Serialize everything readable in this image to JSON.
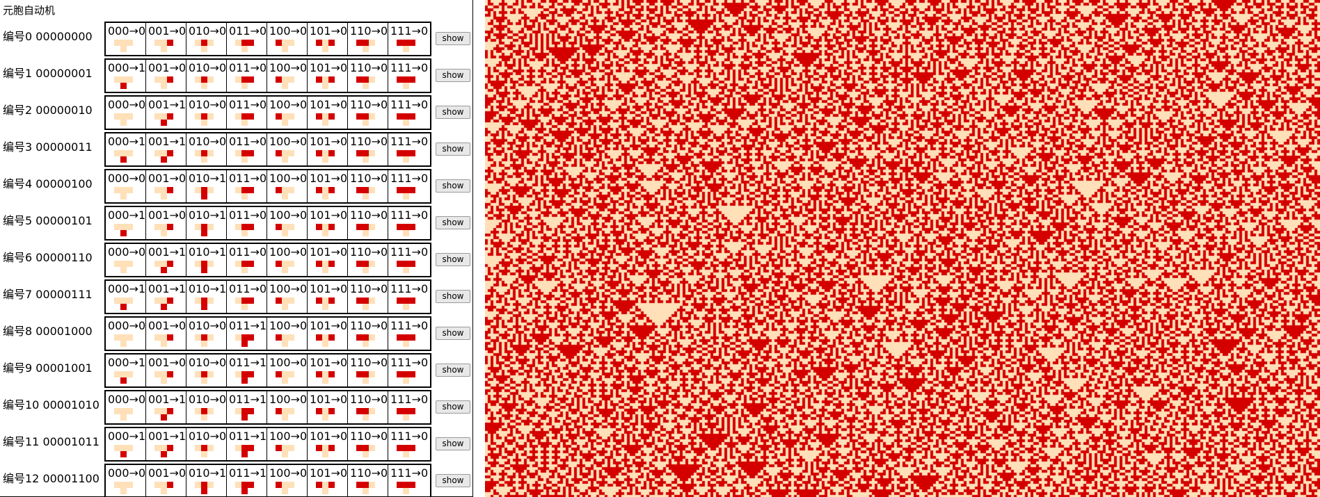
{
  "app": {
    "title": "元胞自动机"
  },
  "show_label": "show",
  "colors": {
    "alive": "#d40000",
    "dead": "#ffe0b8"
  },
  "patterns": [
    "000",
    "001",
    "010",
    "011",
    "100",
    "101",
    "110",
    "111"
  ],
  "rules": [
    {
      "label": "编号0 00000000",
      "bits": "00000000"
    },
    {
      "label": "编号1 00000001",
      "bits": "00000001"
    },
    {
      "label": "编号2 00000010",
      "bits": "00000010"
    },
    {
      "label": "编号3 00000011",
      "bits": "00000011"
    },
    {
      "label": "编号4 00000100",
      "bits": "00000100"
    },
    {
      "label": "编号5 00000101",
      "bits": "00000101"
    },
    {
      "label": "编号6 00000110",
      "bits": "00000110"
    },
    {
      "label": "编号7 00000111",
      "bits": "00000111"
    },
    {
      "label": "编号8 00001000",
      "bits": "00001000"
    },
    {
      "label": "编号9 00001001",
      "bits": "00001001"
    },
    {
      "label": "编号10 00001010",
      "bits": "00001010"
    },
    {
      "label": "编号11 00001011",
      "bits": "00001011"
    },
    {
      "label": "编号12 00001100",
      "bits": "00001100"
    }
  ],
  "active_rule_bits": "10010110"
}
